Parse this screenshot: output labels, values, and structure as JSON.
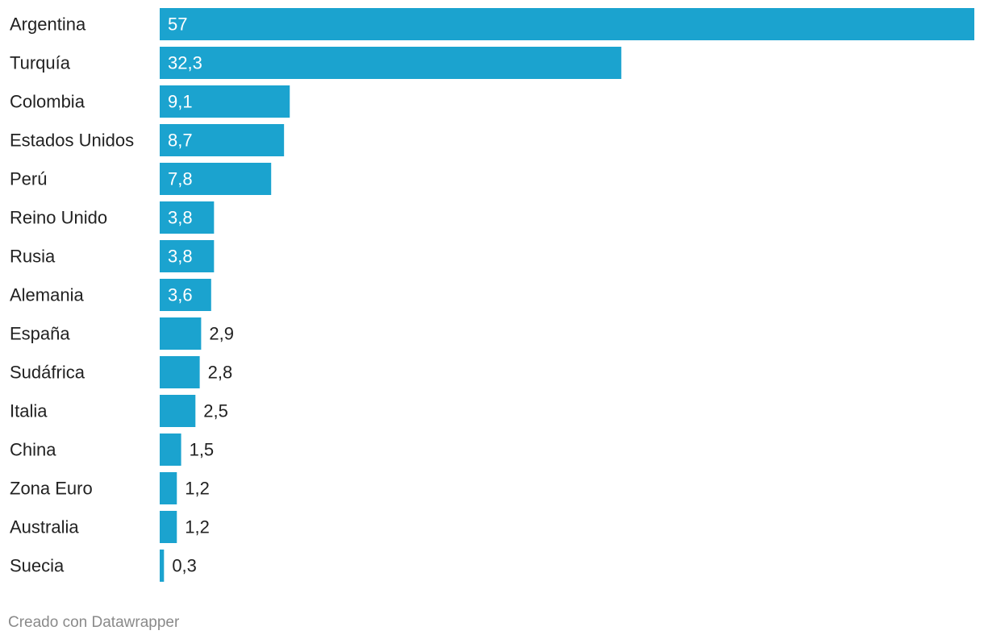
{
  "chart_data": {
    "type": "bar",
    "orientation": "horizontal",
    "categories": [
      "Argentina",
      "Turquía",
      "Colombia",
      "Estados Unidos",
      "Perú",
      "Reino Unido",
      "Rusia",
      "Alemania",
      "España",
      "Sudáfrica",
      "Italia",
      "China",
      "Zona Euro",
      "Australia",
      "Suecia"
    ],
    "values": [
      57,
      32.3,
      9.1,
      8.7,
      7.8,
      3.8,
      3.8,
      3.6,
      2.9,
      2.8,
      2.5,
      1.5,
      1.2,
      1.2,
      0.3
    ],
    "value_labels": [
      "57",
      "32,3",
      "9,1",
      "8,7",
      "7,8",
      "3,8",
      "3,8",
      "3,6",
      "2,9",
      "2,8",
      "2,5",
      "1,5",
      "1,2",
      "1,2",
      "0,3"
    ],
    "xlim": [
      0,
      57
    ],
    "bar_color": "#1ba3cf",
    "inside_label_color": "#ffffff",
    "outside_label_color": "#222222",
    "category_label_color": "#222222"
  },
  "footer": {
    "credit": "Creado con Datawrapper"
  }
}
